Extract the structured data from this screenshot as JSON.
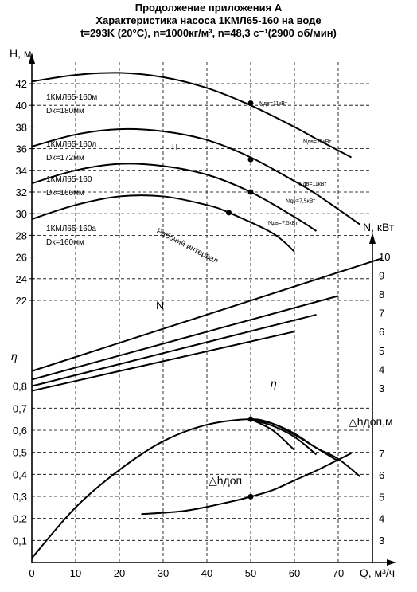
{
  "title": {
    "line1": "Продолжение приложения А",
    "line2": "Характеристика насоса 1КМЛ65-160 на воде",
    "line3": "t=293K (20°C), n=1000кг/м³, n=48,3 с⁻¹(2900 об/мин)"
  },
  "chart_data": {
    "type": "line",
    "x_axis": {
      "label": "Q, м³/ч",
      "range": [
        0,
        80
      ],
      "ticks": [
        0,
        10,
        20,
        30,
        40,
        50,
        60,
        70
      ]
    },
    "h_axis": {
      "label": "H, м",
      "range": [
        22,
        43
      ],
      "ticks": [
        22,
        24,
        26,
        28,
        30,
        32,
        34,
        36,
        38,
        40,
        42
      ]
    },
    "eta_axis": {
      "label": "η",
      "range": [
        0,
        0.9
      ],
      "ticks": [
        "0,1",
        "0,2",
        "0,3",
        "0,4",
        "0,5",
        "0,6",
        "0,7",
        "0,8"
      ]
    },
    "n_axis": {
      "label": "N, кВт",
      "range": [
        2,
        10
      ],
      "ticks": [
        3,
        4,
        5,
        6,
        7,
        8,
        9,
        10
      ]
    },
    "dh_axis": {
      "label": "△hдоп,м",
      "range": [
        2,
        7.5
      ],
      "ticks": [
        3,
        4,
        5,
        6,
        7
      ]
    },
    "head_curves": [
      {
        "name": "1КМЛ65-160м",
        "dk": "Dк=180мм",
        "points": [
          [
            0,
            42.2
          ],
          [
            10,
            42.8
          ],
          [
            20,
            43.0
          ],
          [
            30,
            42.6
          ],
          [
            40,
            41.6
          ],
          [
            50,
            40.0
          ],
          [
            60,
            38.0
          ],
          [
            65,
            36.9
          ],
          [
            73,
            35.2
          ]
        ]
      },
      {
        "name": "1КМЛ65-160л",
        "dk": "Dк=172мм",
        "points": [
          [
            0,
            36.2
          ],
          [
            10,
            37.3
          ],
          [
            20,
            37.8
          ],
          [
            30,
            37.6
          ],
          [
            40,
            36.8
          ],
          [
            50,
            35.2
          ],
          [
            60,
            33.0
          ],
          [
            65,
            31.8
          ],
          [
            75,
            29.0
          ]
        ]
      },
      {
        "name": "1КМЛ65-160",
        "dk": "Dк=166мм",
        "points": [
          [
            0,
            32.8
          ],
          [
            10,
            34.0
          ],
          [
            20,
            34.6
          ],
          [
            30,
            34.4
          ],
          [
            40,
            33.6
          ],
          [
            50,
            32.0
          ],
          [
            60,
            29.7
          ],
          [
            65,
            28.4
          ]
        ]
      },
      {
        "name": "1КМЛ65-160а",
        "dk": "Dк=160мм",
        "points": [
          [
            0,
            29.5
          ],
          [
            10,
            30.8
          ],
          [
            20,
            31.6
          ],
          [
            30,
            31.6
          ],
          [
            40,
            30.8
          ],
          [
            45,
            30.1
          ],
          [
            55,
            28.2
          ],
          [
            60,
            26.5
          ]
        ]
      }
    ],
    "head_markers": [
      [
        50,
        40.2
      ],
      [
        50,
        35.0
      ],
      [
        50,
        32.0
      ],
      [
        45,
        30.1
      ]
    ],
    "power_curves": [
      {
        "points": [
          [
            0,
            3.9
          ],
          [
            80,
            9.9
          ]
        ]
      },
      {
        "points": [
          [
            0,
            3.45
          ],
          [
            70,
            7.9
          ]
        ]
      },
      {
        "points": [
          [
            0,
            3.1
          ],
          [
            65,
            6.9
          ]
        ]
      },
      {
        "points": [
          [
            0,
            2.85
          ],
          [
            60,
            6.0
          ]
        ]
      }
    ],
    "efficiency_curves": [
      {
        "points": [
          [
            0,
            0.02
          ],
          [
            10,
            0.25
          ],
          [
            20,
            0.42
          ],
          [
            30,
            0.55
          ],
          [
            40,
            0.625
          ],
          [
            50,
            0.65
          ],
          [
            55,
            0.63
          ],
          [
            60,
            0.585
          ],
          [
            65,
            0.52
          ],
          [
            70,
            0.47
          ],
          [
            75,
            0.39
          ]
        ]
      },
      {
        "points": [
          [
            50,
            0.65
          ],
          [
            55,
            0.63
          ],
          [
            60,
            0.58
          ],
          [
            65,
            0.52
          ],
          [
            70,
            0.46
          ]
        ]
      },
      {
        "points": [
          [
            50,
            0.65
          ],
          [
            55,
            0.62
          ],
          [
            60,
            0.57
          ],
          [
            65,
            0.49
          ]
        ]
      },
      {
        "points": [
          [
            50,
            0.65
          ],
          [
            55,
            0.6
          ],
          [
            60,
            0.51
          ]
        ]
      }
    ],
    "npsh_curve": {
      "points": [
        [
          25,
          4.2
        ],
        [
          35,
          4.35
        ],
        [
          45,
          4.75
        ],
        [
          50,
          5.0
        ],
        [
          55,
          5.3
        ],
        [
          60,
          5.75
        ],
        [
          65,
          6.2
        ],
        [
          70,
          6.7
        ],
        [
          73,
          7.0
        ]
      ]
    },
    "npsh_marker": [
      50,
      5.0
    ],
    "operating_interval_label": "Рабочий интервал",
    "power_labels": [
      {
        "text": "Nдв=11кВт",
        "x": 52,
        "y": 40.0
      },
      {
        "text": "Nдв=15кВт",
        "x": 62,
        "y": 36.5
      },
      {
        "text": "Nдв=11кВт",
        "x": 61,
        "y": 32.6
      },
      {
        "text": "Nдв=7,5кВт",
        "x": 58,
        "y": 31.0
      },
      {
        "text": "Nдв=7,5кВт",
        "x": 54,
        "y": 29.0
      }
    ],
    "curve_group_labels": {
      "head": "H",
      "power": "N",
      "efficiency": "η",
      "npsh": "△hдоп"
    }
  }
}
